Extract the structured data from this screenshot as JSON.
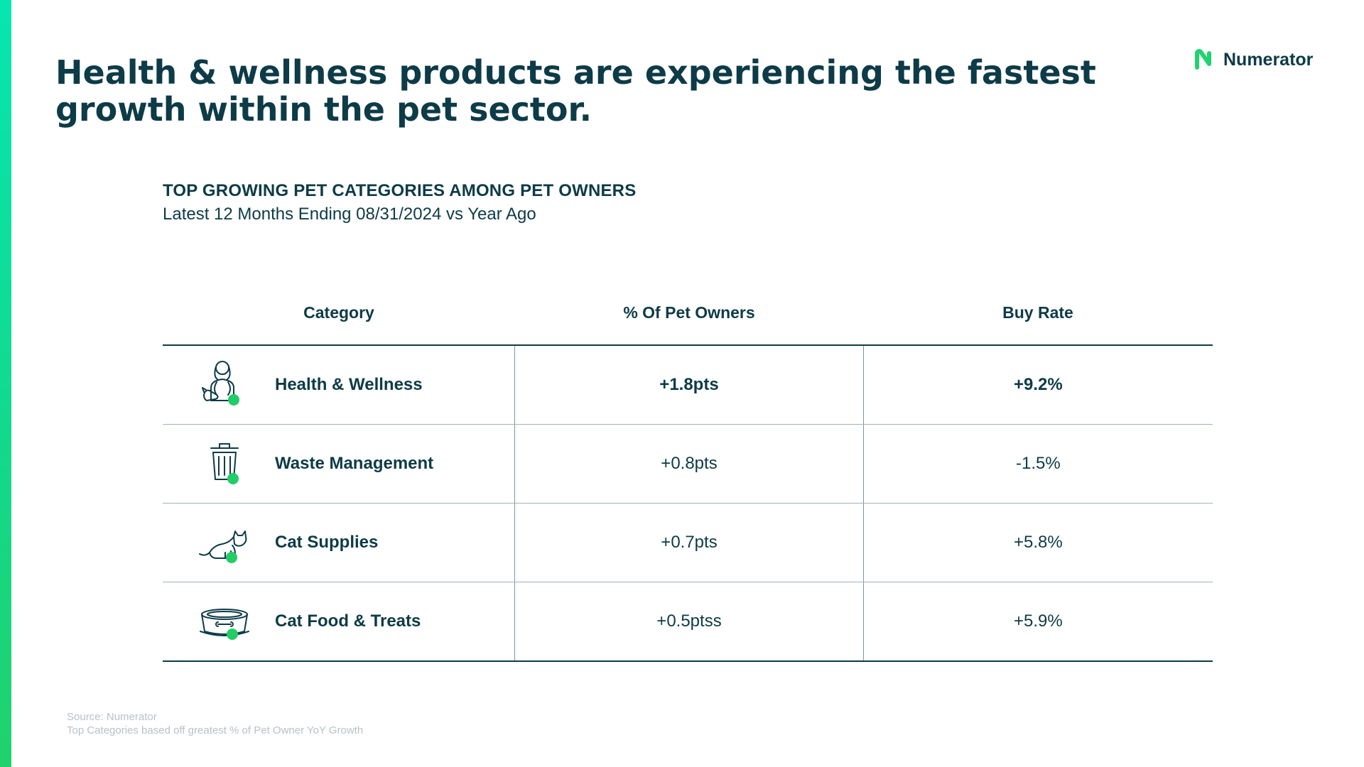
{
  "header": {
    "title": "Health & wellness products are experiencing the fastest growth within the pet sector.",
    "logo_text": "Numerator"
  },
  "table_title": "TOP GROWING PET CATEGORIES AMONG PET OWNERS",
  "table_subtitle": "Latest 12 Months Ending 08/31/2024 vs Year Ago",
  "columns": [
    "Category",
    "% Of Pet Owners",
    "Buy Rate"
  ],
  "rows": [
    {
      "icon": "vet-with-pet-icon",
      "category": "Health & Wellness",
      "pet_owners": "+1.8pts",
      "buy_rate": "+9.2%"
    },
    {
      "icon": "trash-can-icon",
      "category": "Waste Management",
      "pet_owners": "+0.8pts",
      "buy_rate": "-1.5%"
    },
    {
      "icon": "cat-icon",
      "category": "Cat Supplies",
      "pet_owners": "+0.7pts",
      "buy_rate": "+5.8%"
    },
    {
      "icon": "pet-food-bowl-icon",
      "category": "Cat Food & Treats",
      "pet_owners": "+0.5ptss",
      "buy_rate": "+5.9%"
    }
  ],
  "footnote": {
    "source": "Source: Numerator",
    "note": "Top Categories based off greatest % of Pet Owner YoY Growth"
  },
  "colors": {
    "brand_dark": "#0d3b47",
    "accent_green": "#22cc66",
    "side_bar": "#06e6b0"
  }
}
